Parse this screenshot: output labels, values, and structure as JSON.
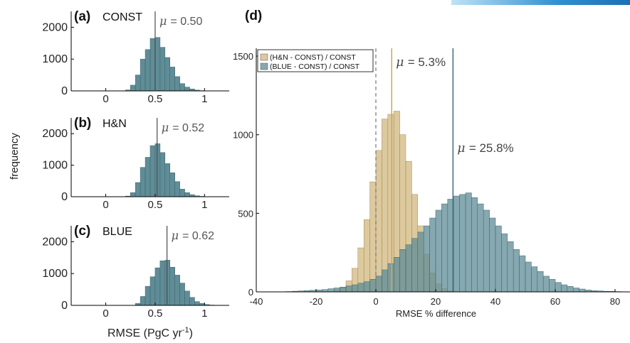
{
  "colors": {
    "blue_fill": "#5f8d97",
    "blue_fill_d": "#5e8b96",
    "tan_fill": "#d2b77e",
    "overlap_fill": "#6b7c55",
    "axis": "#000000",
    "mu_line_blue": "#3d6f7c",
    "mu_line_tan": "#c8a860",
    "mu_line_small": "#4a4a4a",
    "zero_line": "#777777"
  },
  "figure": {
    "ylabel": "frequency"
  },
  "chart_data": [
    {
      "type": "bar",
      "panel_letter": "(a)",
      "panel_name": "CONST",
      "mu_label": "= 0.50",
      "mu": 0.5,
      "xlim": [
        -0.35,
        1.25
      ],
      "ylim": [
        0,
        2500
      ],
      "xticks": [
        0,
        0.5,
        1
      ],
      "xtick_labels": [
        "0",
        "0.5",
        "1"
      ],
      "yticks": [
        0,
        1000,
        2000
      ],
      "ytick_labels": [
        "0",
        "1000",
        "2000"
      ],
      "bin_width": 0.05,
      "bin_starts": [
        0.2,
        0.25,
        0.3,
        0.35,
        0.4,
        0.45,
        0.5,
        0.55,
        0.6,
        0.65,
        0.7,
        0.75,
        0.8,
        0.85,
        0.9,
        0.95
      ],
      "values": [
        30,
        180,
        500,
        1000,
        1300,
        1650,
        1680,
        1370,
        1050,
        750,
        450,
        230,
        120,
        60,
        25,
        10
      ],
      "show_xlabel": false
    },
    {
      "type": "bar",
      "panel_letter": "(b)",
      "panel_name": "H&N",
      "mu_label": "= 0.52",
      "mu": 0.52,
      "xlim": [
        -0.35,
        1.25
      ],
      "ylim": [
        0,
        2500
      ],
      "xticks": [
        0,
        0.5,
        1
      ],
      "xtick_labels": [
        "0",
        "0.5",
        "1"
      ],
      "yticks": [
        0,
        1000,
        2000
      ],
      "ytick_labels": [
        "0",
        "1000",
        "2000"
      ],
      "bin_width": 0.05,
      "bin_starts": [
        0.2,
        0.25,
        0.3,
        0.35,
        0.4,
        0.45,
        0.5,
        0.55,
        0.6,
        0.65,
        0.7,
        0.75,
        0.8,
        0.85,
        0.9,
        0.95,
        1.0
      ],
      "values": [
        20,
        130,
        450,
        930,
        1250,
        1620,
        1680,
        1400,
        1050,
        760,
        480,
        240,
        130,
        65,
        30,
        12,
        5
      ],
      "show_xlabel": false
    },
    {
      "type": "bar",
      "panel_letter": "(c)",
      "panel_name": "BLUE",
      "mu_label": "= 0.62",
      "mu": 0.62,
      "xlim": [
        -0.35,
        1.25
      ],
      "ylim": [
        0,
        2500
      ],
      "xticks": [
        0,
        0.5,
        1
      ],
      "xtick_labels": [
        "0",
        "0.5",
        "1"
      ],
      "yticks": [
        0,
        1000,
        2000
      ],
      "ytick_labels": [
        "0",
        "1000",
        "2000"
      ],
      "bin_width": 0.05,
      "bin_starts": [
        0.3,
        0.35,
        0.4,
        0.45,
        0.5,
        0.55,
        0.6,
        0.65,
        0.7,
        0.75,
        0.8,
        0.85,
        0.9,
        0.95,
        1.0,
        1.05
      ],
      "values": [
        60,
        280,
        600,
        900,
        1180,
        1400,
        1420,
        1200,
        950,
        700,
        450,
        250,
        120,
        60,
        25,
        10
      ],
      "show_xlabel": true,
      "xlabel_text": "RMSE (PgC yr",
      "xlabel_sup": "-1",
      "xlabel_tail": ")"
    },
    {
      "type": "bar",
      "panel_letter": "(d)",
      "xlabel": "RMSE % difference",
      "xlim": [
        -40,
        85
      ],
      "ylim": [
        0,
        1550
      ],
      "xticks": [
        -40,
        -20,
        0,
        20,
        40,
        60,
        80
      ],
      "xtick_labels": [
        "-40",
        "-20",
        "0",
        "20",
        "40",
        "60",
        "80"
      ],
      "yticks": [
        0,
        500,
        1000,
        1500
      ],
      "ytick_labels": [
        "0",
        "500",
        "1000",
        "1500"
      ],
      "bin_width": 2,
      "legend_position": "top-left",
      "series": [
        {
          "name": "(H&N - CONST) / CONST",
          "color_key": "tan_fill",
          "mu": 5.3,
          "mu_label": "= 5.3%",
          "bin_starts": [
            -14,
            -12,
            -10,
            -8,
            -6,
            -4,
            -2,
            0,
            2,
            4,
            6,
            8,
            10,
            12,
            14,
            16,
            18,
            20,
            22,
            24
          ],
          "values": [
            10,
            30,
            70,
            150,
            280,
            460,
            700,
            900,
            1100,
            1130,
            1150,
            1000,
            830,
            620,
            420,
            240,
            120,
            50,
            20,
            5
          ]
        },
        {
          "name": "(BLUE - CONST) / CONST",
          "color_key": "blue_fill_d",
          "mu": 25.8,
          "mu_label": "= 25.8%",
          "bin_starts": [
            -30,
            -28,
            -26,
            -24,
            -22,
            -20,
            -18,
            -16,
            -14,
            -12,
            -10,
            -8,
            -6,
            -4,
            -2,
            0,
            2,
            4,
            6,
            8,
            10,
            12,
            14,
            16,
            18,
            20,
            22,
            24,
            26,
            28,
            30,
            32,
            34,
            36,
            38,
            40,
            42,
            44,
            46,
            48,
            50,
            52,
            54,
            56,
            58,
            60,
            62,
            64,
            66,
            68,
            70,
            72,
            74,
            76,
            78,
            80
          ],
          "values": [
            2,
            4,
            6,
            8,
            10,
            12,
            15,
            20,
            25,
            30,
            38,
            45,
            55,
            65,
            80,
            100,
            140,
            180,
            220,
            270,
            300,
            340,
            380,
            420,
            470,
            520,
            560,
            590,
            610,
            620,
            630,
            600,
            560,
            520,
            470,
            420,
            370,
            320,
            270,
            230,
            190,
            160,
            130,
            100,
            80,
            60,
            45,
            35,
            25,
            18,
            12,
            8,
            6,
            4,
            3,
            2
          ]
        }
      ]
    }
  ]
}
